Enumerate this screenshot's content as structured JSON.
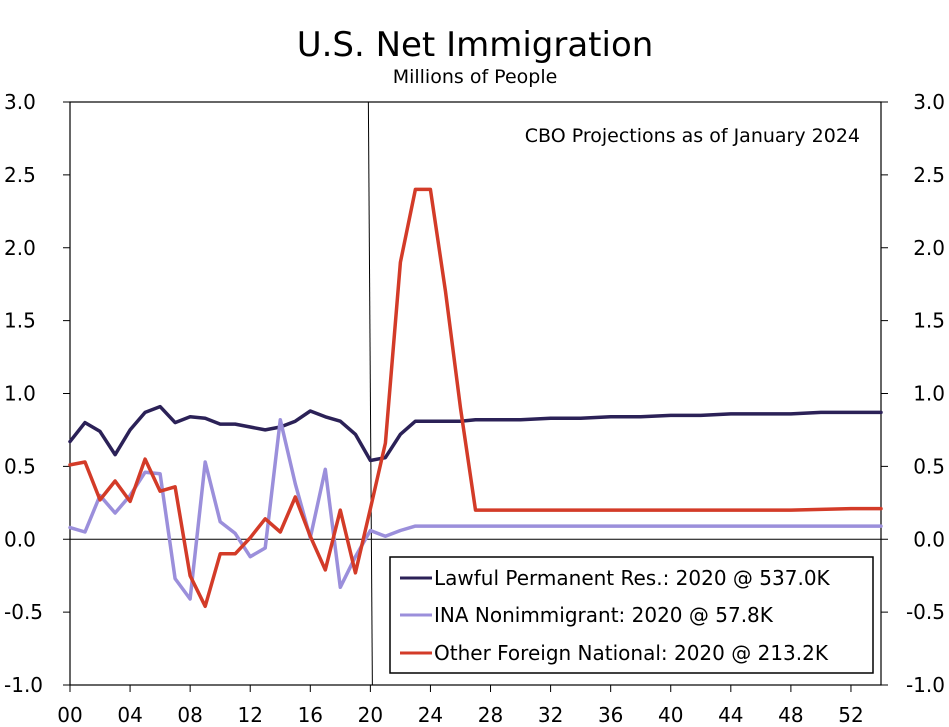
{
  "chart_data": {
    "type": "line",
    "title": "U.S. Net Immigration",
    "subtitle": "Millions of People",
    "annotation": "CBO Projections as of January 2024",
    "xlim": [
      2000,
      2054
    ],
    "ylim": [
      -1.0,
      3.0
    ],
    "y_ticks": [
      "3.0",
      "2.5",
      "2.0",
      "1.5",
      "1.0",
      "0.5",
      "0.0",
      "-0.5",
      "-1.0"
    ],
    "y_tick_values": [
      3.0,
      2.5,
      2.0,
      1.5,
      1.0,
      0.5,
      0.0,
      -0.5,
      -1.0
    ],
    "x_ticks": [
      "00",
      "04",
      "08",
      "12",
      "16",
      "20",
      "24",
      "28",
      "32",
      "36",
      "40",
      "44",
      "48",
      "52"
    ],
    "x_tick_values": [
      2000,
      2004,
      2008,
      2012,
      2016,
      2020,
      2024,
      2028,
      2032,
      2036,
      2040,
      2044,
      2048,
      2052
    ],
    "divider_x": 2020,
    "legend_position": "bottom-right",
    "series": [
      {
        "name": "Lawful Permanent Res.: 2020 @ 537.0K",
        "color": "#2b2157",
        "x": [
          2000,
          2001,
          2002,
          2003,
          2004,
          2005,
          2006,
          2007,
          2008,
          2009,
          2010,
          2011,
          2012,
          2013,
          2014,
          2015,
          2016,
          2017,
          2018,
          2019,
          2020,
          2021,
          2022,
          2023,
          2024,
          2025,
          2026,
          2027,
          2028,
          2030,
          2032,
          2034,
          2036,
          2038,
          2040,
          2042,
          2044,
          2046,
          2048,
          2050,
          2052,
          2054
        ],
        "y": [
          0.67,
          0.8,
          0.74,
          0.58,
          0.75,
          0.87,
          0.91,
          0.8,
          0.84,
          0.83,
          0.79,
          0.79,
          0.77,
          0.75,
          0.77,
          0.81,
          0.88,
          0.84,
          0.81,
          0.72,
          0.54,
          0.56,
          0.72,
          0.81,
          0.81,
          0.81,
          0.81,
          0.82,
          0.82,
          0.82,
          0.83,
          0.83,
          0.84,
          0.84,
          0.85,
          0.85,
          0.86,
          0.86,
          0.86,
          0.87,
          0.87,
          0.87
        ]
      },
      {
        "name": "INA Nonimmigrant: 2020 @ 57.8K",
        "color": "#9b8fdb",
        "x": [
          2000,
          2001,
          2002,
          2003,
          2004,
          2005,
          2006,
          2007,
          2008,
          2009,
          2010,
          2011,
          2012,
          2013,
          2014,
          2015,
          2016,
          2017,
          2018,
          2019,
          2020,
          2021,
          2022,
          2023,
          2024,
          2026,
          2028,
          2032,
          2036,
          2040,
          2044,
          2048,
          2052,
          2054
        ],
        "y": [
          0.08,
          0.05,
          0.3,
          0.18,
          0.3,
          0.46,
          0.45,
          -0.27,
          -0.41,
          0.53,
          0.12,
          0.04,
          -0.12,
          -0.06,
          0.82,
          0.38,
          0.01,
          0.48,
          -0.33,
          -0.12,
          0.06,
          0.02,
          0.06,
          0.09,
          0.09,
          0.09,
          0.09,
          0.09,
          0.09,
          0.09,
          0.09,
          0.09,
          0.09,
          0.09
        ]
      },
      {
        "name": "Other Foreign National: 2020 @ 213.2K",
        "color": "#d33b28",
        "x": [
          2000,
          2001,
          2002,
          2003,
          2004,
          2005,
          2006,
          2007,
          2008,
          2009,
          2010,
          2011,
          2012,
          2013,
          2014,
          2015,
          2016,
          2017,
          2018,
          2019,
          2020,
          2021,
          2022,
          2023,
          2024,
          2025,
          2026,
          2027,
          2028,
          2032,
          2036,
          2040,
          2044,
          2048,
          2052,
          2054
        ],
        "y": [
          0.51,
          0.53,
          0.27,
          0.4,
          0.26,
          0.55,
          0.33,
          0.36,
          -0.25,
          -0.46,
          -0.1,
          -0.1,
          0.01,
          0.14,
          0.05,
          0.29,
          0.02,
          -0.21,
          0.2,
          -0.23,
          0.21,
          0.66,
          1.9,
          2.4,
          2.4,
          1.7,
          0.9,
          0.2,
          0.2,
          0.2,
          0.2,
          0.2,
          0.2,
          0.2,
          0.21,
          0.21
        ]
      }
    ]
  }
}
